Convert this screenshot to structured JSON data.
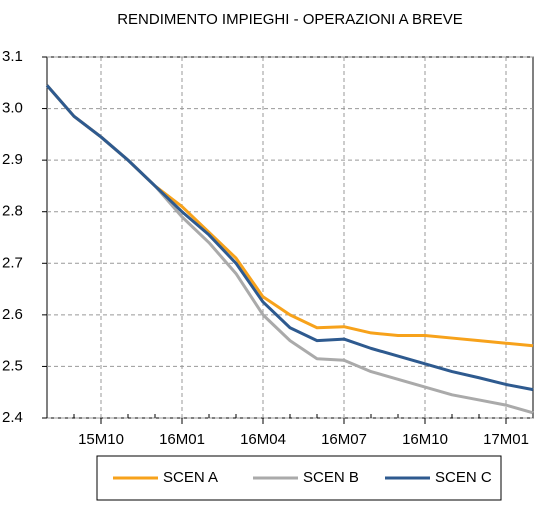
{
  "chart_data": {
    "type": "line",
    "title": "RENDIMENTO IMPIEGHI - OPERAZIONI A BREVE",
    "categories": [
      null,
      null,
      "15M10",
      null,
      null,
      "16M01",
      null,
      null,
      "16M04",
      null,
      null,
      "16M07",
      null,
      null,
      "16M10",
      null,
      null,
      "17M01",
      null
    ],
    "series": [
      {
        "name": "SCEN A",
        "color": "#f7a21b",
        "values": [
          3.045,
          2.985,
          2.945,
          2.9,
          2.85,
          2.81,
          2.76,
          2.71,
          2.635,
          2.6,
          2.575,
          2.577,
          2.565,
          2.56,
          2.56,
          2.555,
          2.55,
          2.545,
          2.54
        ]
      },
      {
        "name": "SCEN B",
        "color": "#aaaaaa",
        "values": [
          3.045,
          2.985,
          2.945,
          2.9,
          2.85,
          2.79,
          2.74,
          2.68,
          2.6,
          2.55,
          2.515,
          2.512,
          2.49,
          2.475,
          2.46,
          2.445,
          2.435,
          2.425,
          2.41
        ]
      },
      {
        "name": "SCEN C",
        "color": "#2e5a8f",
        "values": [
          3.045,
          2.985,
          2.945,
          2.9,
          2.85,
          2.8,
          2.755,
          2.7,
          2.625,
          2.575,
          2.55,
          2.553,
          2.535,
          2.52,
          2.505,
          2.49,
          2.478,
          2.465,
          2.455
        ]
      }
    ],
    "ylim": [
      2.4,
      3.1
    ],
    "yticks": [
      2.4,
      2.5,
      2.6,
      2.7,
      2.8,
      2.9,
      {
        "value": 3,
        "label": "3.0"
      },
      3.1
    ],
    "grid": true,
    "legend": "bottom"
  }
}
